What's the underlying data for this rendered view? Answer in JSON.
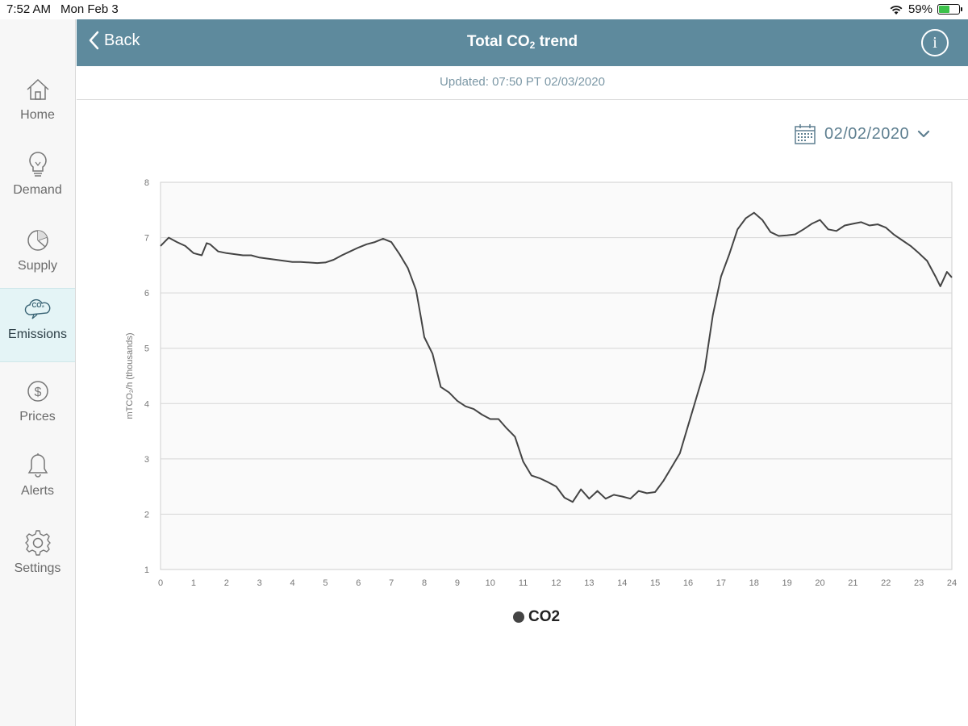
{
  "status_bar": {
    "time": "7:52 AM",
    "date": "Mon Feb 3",
    "battery": "59%",
    "battery_level": 0.59
  },
  "sidebar": {
    "items": [
      {
        "label": "Home",
        "icon": "home-icon"
      },
      {
        "label": "Demand",
        "icon": "lightbulb-icon"
      },
      {
        "label": "Supply",
        "icon": "pie-chart-icon"
      },
      {
        "label": "Emissions",
        "icon": "co2-cloud-icon",
        "active": true,
        "badge": "CO₂"
      },
      {
        "label": "Prices",
        "icon": "dollar-icon"
      },
      {
        "label": "Alerts",
        "icon": "bell-icon"
      },
      {
        "label": "Settings",
        "icon": "gear-icon"
      }
    ]
  },
  "header": {
    "back_label": "Back",
    "title_main": "Total CO",
    "title_sub": "2",
    "title_end": " trend",
    "info_label": "i"
  },
  "updated": "Updated: 07:50 PT 02/03/2020",
  "date_picker": {
    "value": "02/02/2020"
  },
  "colors": {
    "header": "#5e8a9d",
    "line": "#444444",
    "active_nav": "#e4f4f6",
    "grid": "#d6d6d6"
  },
  "chart_data": {
    "type": "line",
    "ylabel": "mTCO₂/h (thousands)",
    "xlim": [
      0,
      24
    ],
    "ylim": [
      1,
      8
    ],
    "x_ticks": [
      0,
      1,
      2,
      3,
      4,
      5,
      6,
      7,
      8,
      9,
      10,
      11,
      12,
      13,
      14,
      15,
      16,
      17,
      18,
      19,
      20,
      21,
      22,
      23,
      24
    ],
    "y_ticks": [
      1,
      2,
      3,
      4,
      5,
      6,
      7,
      8
    ],
    "grid": true,
    "legend_position": "bottom-center",
    "series": [
      {
        "name": "CO2",
        "color": "#444444",
        "points": [
          [
            0,
            6.85
          ],
          [
            0.25,
            7.0
          ],
          [
            0.5,
            6.92
          ],
          [
            0.75,
            6.85
          ],
          [
            1,
            6.72
          ],
          [
            1.25,
            6.68
          ],
          [
            1.4,
            6.9
          ],
          [
            1.5,
            6.88
          ],
          [
            1.75,
            6.75
          ],
          [
            2,
            6.72
          ],
          [
            2.25,
            6.7
          ],
          [
            2.5,
            6.68
          ],
          [
            2.75,
            6.68
          ],
          [
            3,
            6.64
          ],
          [
            3.25,
            6.62
          ],
          [
            3.5,
            6.6
          ],
          [
            3.75,
            6.58
          ],
          [
            4,
            6.56
          ],
          [
            4.25,
            6.56
          ],
          [
            4.5,
            6.55
          ],
          [
            4.75,
            6.54
          ],
          [
            5,
            6.55
          ],
          [
            5.25,
            6.6
          ],
          [
            5.5,
            6.68
          ],
          [
            5.75,
            6.75
          ],
          [
            6,
            6.82
          ],
          [
            6.25,
            6.88
          ],
          [
            6.5,
            6.92
          ],
          [
            6.75,
            6.98
          ],
          [
            7,
            6.92
          ],
          [
            7.25,
            6.7
          ],
          [
            7.5,
            6.45
          ],
          [
            7.75,
            6.05
          ],
          [
            7.9,
            5.55
          ],
          [
            8,
            5.2
          ],
          [
            8.25,
            4.9
          ],
          [
            8.5,
            4.3
          ],
          [
            8.75,
            4.2
          ],
          [
            9,
            4.05
          ],
          [
            9.25,
            3.95
          ],
          [
            9.5,
            3.9
          ],
          [
            9.75,
            3.8
          ],
          [
            10,
            3.72
          ],
          [
            10.25,
            3.72
          ],
          [
            10.5,
            3.55
          ],
          [
            10.75,
            3.4
          ],
          [
            11,
            2.95
          ],
          [
            11.25,
            2.7
          ],
          [
            11.5,
            2.65
          ],
          [
            11.75,
            2.58
          ],
          [
            12,
            2.5
          ],
          [
            12.25,
            2.3
          ],
          [
            12.5,
            2.22
          ],
          [
            12.75,
            2.45
          ],
          [
            13,
            2.28
          ],
          [
            13.25,
            2.42
          ],
          [
            13.5,
            2.28
          ],
          [
            13.75,
            2.35
          ],
          [
            14,
            2.32
          ],
          [
            14.25,
            2.28
          ],
          [
            14.5,
            2.42
          ],
          [
            14.75,
            2.38
          ],
          [
            15,
            2.4
          ],
          [
            15.25,
            2.6
          ],
          [
            15.5,
            2.85
          ],
          [
            15.75,
            3.1
          ],
          [
            16,
            3.6
          ],
          [
            16.25,
            4.1
          ],
          [
            16.5,
            4.6
          ],
          [
            16.75,
            5.6
          ],
          [
            17,
            6.3
          ],
          [
            17.25,
            6.7
          ],
          [
            17.5,
            7.15
          ],
          [
            17.75,
            7.35
          ],
          [
            18,
            7.45
          ],
          [
            18.25,
            7.32
          ],
          [
            18.5,
            7.1
          ],
          [
            18.75,
            7.03
          ],
          [
            19,
            7.04
          ],
          [
            19.25,
            7.06
          ],
          [
            19.5,
            7.15
          ],
          [
            19.75,
            7.25
          ],
          [
            20,
            7.32
          ],
          [
            20.25,
            7.15
          ],
          [
            20.5,
            7.12
          ],
          [
            20.75,
            7.22
          ],
          [
            21,
            7.25
          ],
          [
            21.25,
            7.28
          ],
          [
            21.5,
            7.22
          ],
          [
            21.75,
            7.24
          ],
          [
            22,
            7.18
          ],
          [
            22.25,
            7.05
          ],
          [
            22.5,
            6.95
          ],
          [
            22.75,
            6.85
          ],
          [
            23,
            6.72
          ],
          [
            23.25,
            6.58
          ],
          [
            23.5,
            6.3
          ],
          [
            23.65,
            6.12
          ],
          [
            23.85,
            6.38
          ],
          [
            24,
            6.28
          ]
        ]
      }
    ]
  }
}
